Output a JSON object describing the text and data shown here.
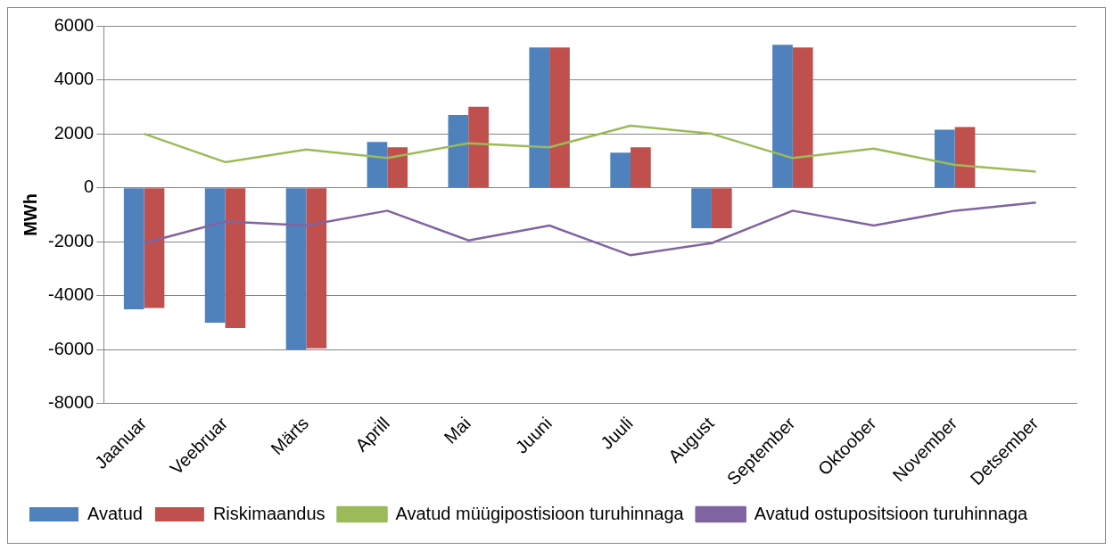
{
  "chart_data": {
    "type": "bar",
    "ylabel": "MWh",
    "categories": [
      "Jaanuar",
      "Veebruar",
      "Märts",
      "Aprill",
      "Mai",
      "Juuni",
      "Juuli",
      "August",
      "September",
      "Oktoober",
      "November",
      "Detsember"
    ],
    "series": [
      {
        "name": "Avatud",
        "color": "#4f81bd",
        "values": [
          -4500,
          -5000,
          -6000,
          1700,
          2700,
          5200,
          1300,
          -1500,
          5300,
          null,
          2150,
          null
        ]
      },
      {
        "name": "Riskimaandus",
        "color": "#c0504d",
        "values": [
          -4450,
          -5200,
          -5950,
          1500,
          3000,
          5200,
          1500,
          -1500,
          5200,
          null,
          2250,
          null
        ]
      },
      {
        "name": "Avatud müügipostisioon turuhinnaga",
        "type": "line",
        "color": "#9bbb59",
        "values": [
          2000,
          950,
          1420,
          1100,
          1650,
          1500,
          2300,
          2000,
          1100,
          1450,
          850,
          600
        ]
      },
      {
        "name": "Avatud ostupositsioon turuhinnaga",
        "type": "line",
        "color": "#8064a2",
        "values": [
          -2050,
          -1250,
          -1400,
          -850,
          -1950,
          -1400,
          -2500,
          -2050,
          -850,
          -1400,
          -850,
          -550
        ]
      }
    ],
    "ylim": [
      -8000,
      6000
    ],
    "yticks": [
      -8000,
      -6000,
      -4000,
      -2000,
      0,
      2000,
      4000,
      6000
    ],
    "grid": "y",
    "legend": "bottom",
    "marker": "none",
    "line_style": "solid"
  }
}
